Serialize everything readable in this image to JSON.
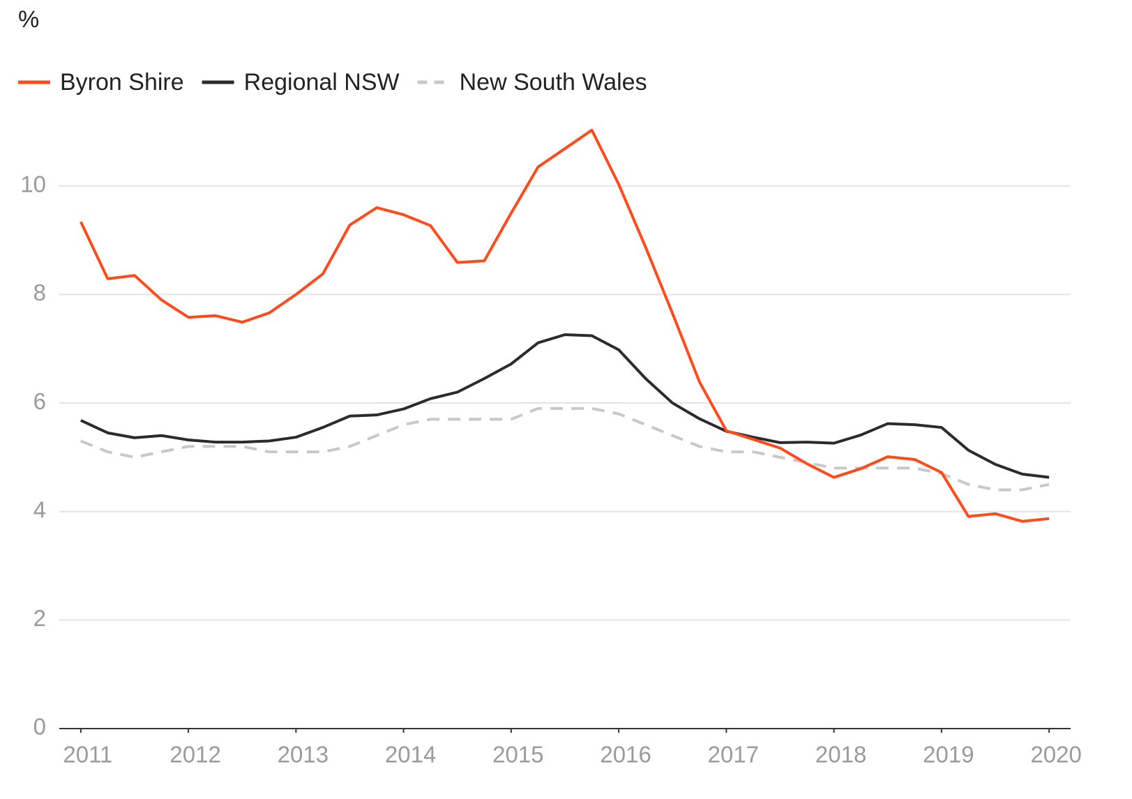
{
  "chart_data": {
    "type": "line",
    "y_label": "%",
    "x": [
      2011,
      2011.25,
      2011.5,
      2011.75,
      2012,
      2012.25,
      2012.5,
      2012.75,
      2013,
      2013.25,
      2013.5,
      2013.75,
      2014,
      2014.25,
      2014.5,
      2014.75,
      2015,
      2015.25,
      2015.5,
      2015.75,
      2016,
      2016.25,
      2016.5,
      2016.75,
      2017,
      2017.25,
      2017.5,
      2017.75,
      2018,
      2018.25,
      2018.5,
      2018.75,
      2019,
      2019.25,
      2019.5,
      2019.75,
      2020
    ],
    "series": [
      {
        "name": "Byron Shire",
        "color": "#ff4a1c",
        "dash": false,
        "values": [
          9.34,
          8.29,
          8.35,
          7.9,
          7.58,
          7.61,
          7.49,
          7.66,
          8.0,
          8.38,
          9.28,
          9.6,
          9.47,
          9.27,
          8.59,
          8.62,
          9.5,
          10.35,
          10.69,
          11.03,
          10.03,
          8.87,
          7.65,
          6.39,
          5.49,
          5.33,
          5.17,
          4.88,
          4.63,
          4.79,
          5.01,
          4.96,
          4.72,
          3.91,
          3.96,
          3.82,
          3.87
        ]
      },
      {
        "name": "Regional NSW",
        "color": "#2b2b2b",
        "dash": false,
        "values": [
          5.68,
          5.45,
          5.36,
          5.4,
          5.32,
          5.28,
          5.28,
          5.3,
          5.37,
          5.55,
          5.76,
          5.78,
          5.89,
          6.08,
          6.2,
          6.45,
          6.72,
          7.11,
          7.26,
          7.24,
          6.98,
          6.45,
          6.0,
          5.71,
          5.48,
          5.37,
          5.27,
          5.28,
          5.26,
          5.41,
          5.62,
          5.6,
          5.55,
          5.13,
          4.87,
          4.69,
          4.63
        ]
      },
      {
        "name": "New South Wales",
        "color": "#c8c8c8",
        "dash": true,
        "values": [
          5.3,
          5.1,
          5.0,
          5.1,
          5.2,
          5.2,
          5.2,
          5.1,
          5.1,
          5.1,
          5.2,
          5.4,
          5.6,
          5.7,
          5.7,
          5.7,
          5.7,
          5.9,
          5.9,
          5.9,
          5.8,
          5.6,
          5.4,
          5.2,
          5.1,
          5.1,
          5.0,
          4.9,
          4.8,
          4.8,
          4.8,
          4.8,
          4.7,
          4.5,
          4.4,
          4.4,
          4.5
        ]
      }
    ],
    "xlim": [
      2010.8,
      2020.2
    ],
    "xticks": [
      2011,
      2012,
      2013,
      2014,
      2015,
      2016,
      2017,
      2018,
      2019,
      2020
    ],
    "ylim": [
      0,
      11.5
    ],
    "yticks": [
      0,
      2,
      4,
      6,
      8,
      10
    ],
    "grid": true,
    "legend": "top-left"
  }
}
